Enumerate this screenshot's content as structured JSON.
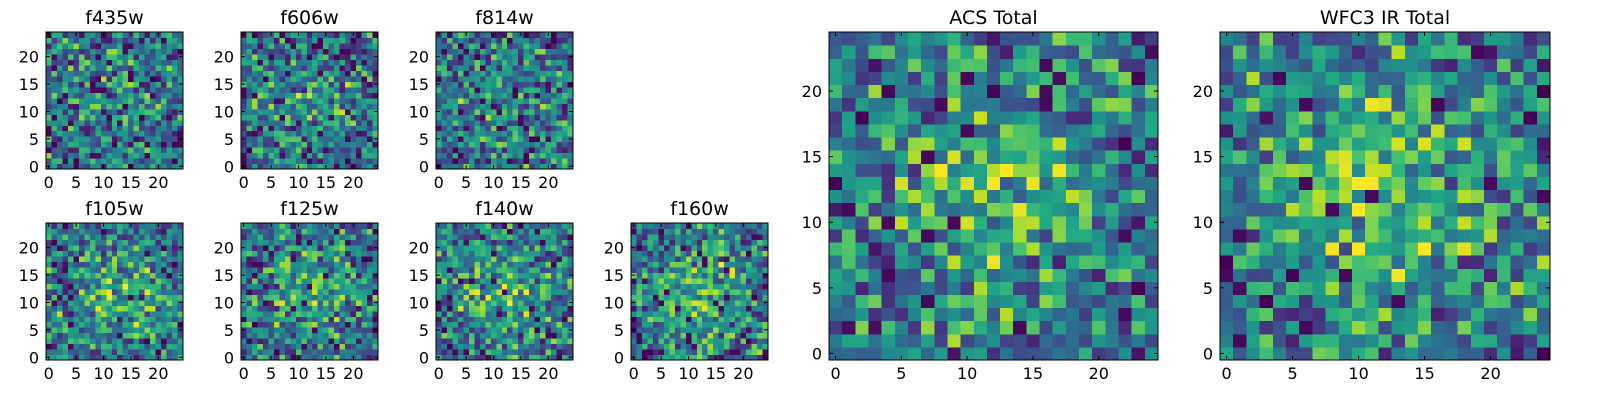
{
  "chart_data": {
    "type": "heatmap",
    "colormap": "viridis",
    "grid": false,
    "panels": [
      {
        "title": "f435w",
        "x_ticks": [
          0,
          5,
          10,
          15,
          20
        ],
        "y_ticks": [
          0,
          5,
          10,
          15,
          20
        ],
        "xlim": [
          -0.5,
          24.5
        ],
        "ylim": [
          -0.5,
          24.5
        ],
        "pixels": [
          25,
          25
        ],
        "center_hotspot": 0.08,
        "seed": 11
      },
      {
        "title": "f606w",
        "x_ticks": [
          0,
          5,
          10,
          15,
          20
        ],
        "y_ticks": [
          0,
          5,
          10,
          15,
          20
        ],
        "xlim": [
          -0.5,
          24.5
        ],
        "ylim": [
          -0.5,
          24.5
        ],
        "pixels": [
          25,
          25
        ],
        "center_hotspot": 0.12,
        "seed": 23
      },
      {
        "title": "f814w",
        "x_ticks": [
          0,
          5,
          10,
          15,
          20
        ],
        "y_ticks": [
          0,
          5,
          10,
          15,
          20
        ],
        "xlim": [
          -0.5,
          24.5
        ],
        "ylim": [
          -0.5,
          24.5
        ],
        "pixels": [
          25,
          25
        ],
        "center_hotspot": 0.1,
        "seed": 37
      },
      {
        "title": "f105w",
        "x_ticks": [
          0,
          5,
          10,
          15,
          20
        ],
        "y_ticks": [
          0,
          5,
          10,
          15,
          20
        ],
        "xlim": [
          -0.5,
          24.5
        ],
        "ylim": [
          -0.5,
          24.5
        ],
        "pixels": [
          25,
          25
        ],
        "center_hotspot": 0.25,
        "seed": 41
      },
      {
        "title": "f125w",
        "x_ticks": [
          0,
          5,
          10,
          15,
          20
        ],
        "y_ticks": [
          0,
          5,
          10,
          15,
          20
        ],
        "xlim": [
          -0.5,
          24.5
        ],
        "ylim": [
          -0.5,
          24.5
        ],
        "pixels": [
          25,
          25
        ],
        "center_hotspot": 0.22,
        "seed": 53
      },
      {
        "title": "f140w",
        "x_ticks": [
          0,
          5,
          10,
          15,
          20
        ],
        "y_ticks": [
          0,
          5,
          10,
          15,
          20
        ],
        "xlim": [
          -0.5,
          24.5
        ],
        "ylim": [
          -0.5,
          24.5
        ],
        "pixels": [
          25,
          25
        ],
        "center_hotspot": 0.25,
        "seed": 67
      },
      {
        "title": "f160w",
        "x_ticks": [
          0,
          5,
          10,
          15,
          20
        ],
        "y_ticks": [
          0,
          5,
          10,
          15,
          20
        ],
        "xlim": [
          -0.5,
          24.5
        ],
        "ylim": [
          -0.5,
          24.5
        ],
        "pixels": [
          25,
          25
        ],
        "center_hotspot": 0.28,
        "seed": 79
      },
      {
        "title": "ACS Total",
        "x_ticks": [
          0,
          5,
          10,
          15,
          20
        ],
        "y_ticks": [
          0,
          5,
          10,
          15,
          20
        ],
        "xlim": [
          -0.5,
          24.5
        ],
        "ylim": [
          -0.5,
          24.5
        ],
        "pixels": [
          25,
          25
        ],
        "center_hotspot": 0.3,
        "seed": 97
      },
      {
        "title": "WFC3 IR Total",
        "x_ticks": [
          0,
          5,
          10,
          15,
          20
        ],
        "y_ticks": [
          0,
          5,
          10,
          15,
          20
        ],
        "xlim": [
          -0.5,
          24.5
        ],
        "ylim": [
          -0.5,
          24.5
        ],
        "pixels": [
          25,
          25
        ],
        "center_hotspot": 0.35,
        "seed": 113
      }
    ]
  }
}
